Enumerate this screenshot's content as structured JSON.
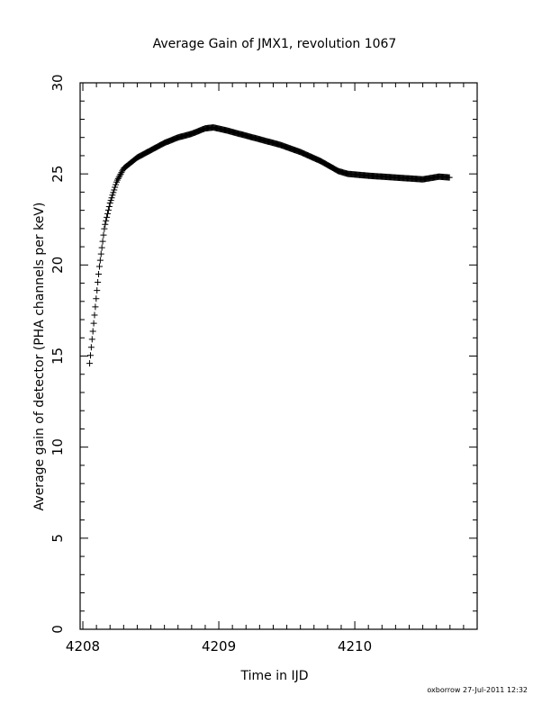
{
  "chart_data": {
    "type": "scatter",
    "title": "Average Gain of JMX1, revolution 1067",
    "xlabel": "Time in IJD",
    "ylabel": "Average gain of detector (PHA channels per keV)",
    "xlim": [
      4207.98,
      4210.9
    ],
    "ylim": [
      0,
      30
    ],
    "x_ticks": [
      "4208",
      "4209",
      "4210"
    ],
    "y_ticks": [
      "0",
      "5",
      "10",
      "15",
      "20",
      "25",
      "30"
    ],
    "grid": false,
    "marker": "plus",
    "series_color": "#000000",
    "anchors": [
      {
        "x": 4208.05,
        "y": 14.6
      },
      {
        "x": 4208.08,
        "y": 16.8
      },
      {
        "x": 4208.12,
        "y": 19.8
      },
      {
        "x": 4208.16,
        "y": 22.1
      },
      {
        "x": 4208.2,
        "y": 23.4
      },
      {
        "x": 4208.25,
        "y": 24.6
      },
      {
        "x": 4208.3,
        "y": 25.3
      },
      {
        "x": 4208.4,
        "y": 25.9
      },
      {
        "x": 4208.5,
        "y": 26.3
      },
      {
        "x": 4208.6,
        "y": 26.7
      },
      {
        "x": 4208.7,
        "y": 27.0
      },
      {
        "x": 4208.8,
        "y": 27.2
      },
      {
        "x": 4208.9,
        "y": 27.5
      },
      {
        "x": 4208.96,
        "y": 27.55
      },
      {
        "x": 4209.05,
        "y": 27.4
      },
      {
        "x": 4209.15,
        "y": 27.2
      },
      {
        "x": 4209.3,
        "y": 26.9
      },
      {
        "x": 4209.45,
        "y": 26.6
      },
      {
        "x": 4209.6,
        "y": 26.2
      },
      {
        "x": 4209.75,
        "y": 25.7
      },
      {
        "x": 4209.88,
        "y": 25.15
      },
      {
        "x": 4209.95,
        "y": 25.0
      },
      {
        "x": 4210.1,
        "y": 24.9
      },
      {
        "x": 4210.3,
        "y": 24.8
      },
      {
        "x": 4210.5,
        "y": 24.7
      },
      {
        "x": 4210.62,
        "y": 24.85
      },
      {
        "x": 4210.7,
        "y": 24.8
      }
    ]
  },
  "footer": {
    "stamp": "oxborrow 27-Jul-2011 12:32"
  }
}
